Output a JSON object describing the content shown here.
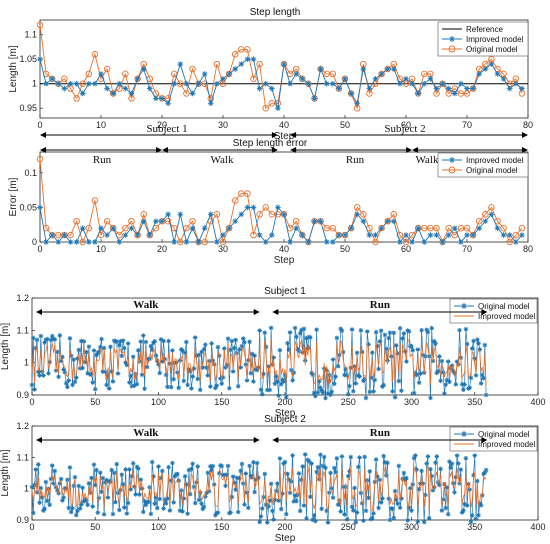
{
  "colors": {
    "reference": "#000000",
    "improved": "#1f77b4",
    "original": "#e8702a",
    "improved_small": "#e8702a",
    "original_small": "#1f77b4"
  },
  "chart_data": [
    {
      "type": "line",
      "title": "Step length",
      "xlabel": "Step",
      "ylabel": "Length [m]",
      "xlim": [
        0,
        80
      ],
      "ylim": [
        0.93,
        1.13
      ],
      "xticks": [
        "0",
        "10",
        "20",
        "30",
        "40",
        "50",
        "60",
        "70",
        "80"
      ],
      "yticks": [
        "0.95",
        "1",
        "1.05",
        "1.1"
      ],
      "legend": [
        "Reference",
        "Improved model",
        "Original model"
      ],
      "legend_position": "top-right",
      "series": [
        {
          "name": "Reference",
          "values": [
            1.0,
            1.0
          ]
        },
        {
          "name": "Improved model",
          "values": [
            1.05,
            1.0,
            1.01,
            1.0,
            0.99,
            1.0,
            1.0,
            0.98,
            1.0,
            1.0,
            1.02,
            0.99,
            0.98,
            1.0,
            0.99,
            0.98,
            1.01,
            1.03,
            0.99,
            0.97,
            0.97,
            0.96,
            1.0,
            1.04,
            1.0,
            0.98,
            1.0,
            1.02,
            0.96,
            1.0,
            1.01,
            1.02,
            1.03,
            1.04,
            1.05,
            1.05,
            0.99,
            1.0,
            0.99,
            0.95,
            1.04,
            1.0,
            1.02,
            1.01,
            1.0,
            0.97,
            1.03,
            1.0,
            1.0,
            0.99,
            1.01,
            0.98,
            0.96,
            1.03,
            0.99,
            1.01,
            1.02,
            1.03,
            1.03,
            1.0,
            1.01,
            1.0,
            0.98,
            1.0,
            1.01,
            0.99,
            1.0,
            0.99,
            0.98,
            1.0,
            0.99,
            0.99,
            1.02,
            1.03,
            1.04,
            1.02,
            1.01,
            0.99,
            1.0,
            0.99
          ]
        },
        {
          "name": "Original model",
          "values": [
            1.12,
            1.02,
            1.01,
            1.0,
            1.01,
            0.99,
            0.97,
            1.0,
            1.02,
            1.06,
            1.01,
            1.03,
            0.98,
            0.99,
            1.02,
            0.97,
            1.01,
            1.04,
            1.01,
            0.98,
            0.97,
            0.97,
            1.02,
            1.0,
            0.98,
            1.03,
            1.0,
            1.0,
            0.97,
            1.04,
            1.0,
            1.02,
            1.06,
            1.07,
            1.07,
            1.01,
            1.04,
            0.95,
            0.96,
            0.96,
            1.04,
            1.02,
            1.03,
            1.01,
            1.0,
            0.97,
            1.03,
            1.02,
            1.02,
            0.99,
            1.01,
            0.98,
            0.95,
            1.04,
            0.98,
            1.0,
            1.02,
            1.03,
            1.04,
            1.01,
            1.0,
            1.01,
            0.98,
            1.02,
            1.02,
            0.98,
            1.0,
            0.98,
            0.99,
            0.98,
            0.98,
            0.99,
            1.03,
            1.04,
            1.05,
            1.03,
            1.02,
            1.0,
            1.01,
            0.98
          ]
        }
      ],
      "annotations": [
        {
          "text": "Step length error",
          "position": "above-lower-axis"
        },
        {
          "text": "Subject 1",
          "span": [
            0,
            39
          ]
        },
        {
          "text": "Subject 2",
          "span": [
            41,
            80
          ]
        },
        {
          "text": "Run",
          "span": [
            0,
            20
          ]
        },
        {
          "text": "Walk",
          "span": [
            20,
            39
          ]
        },
        {
          "text": "Run",
          "span": [
            41,
            61
          ]
        },
        {
          "text": "Walk",
          "span": [
            61,
            80
          ]
        }
      ]
    },
    {
      "type": "line",
      "title": "",
      "xlabel": "Step",
      "ylabel": "Error [m]",
      "xlim": [
        0,
        80
      ],
      "ylim": [
        0,
        0.13
      ],
      "xticks": [
        "0",
        "10",
        "20",
        "30",
        "40",
        "50",
        "60",
        "70",
        "80"
      ],
      "yticks": [
        "0",
        "0.05",
        "0.1"
      ],
      "legend": [
        "Improved model",
        "Original model"
      ],
      "legend_position": "top-right",
      "series": [
        {
          "name": "Improved model",
          "values": [
            0.05,
            0.0,
            0.01,
            0.0,
            0.01,
            0.0,
            0.0,
            0.02,
            0.0,
            0.0,
            0.02,
            0.01,
            0.02,
            0.0,
            0.01,
            0.02,
            0.01,
            0.03,
            0.01,
            0.03,
            0.03,
            0.04,
            0.0,
            0.04,
            0.0,
            0.02,
            0.0,
            0.02,
            0.04,
            0.0,
            0.01,
            0.02,
            0.03,
            0.04,
            0.05,
            0.05,
            0.01,
            0.0,
            0.01,
            0.05,
            0.04,
            0.0,
            0.02,
            0.01,
            0.0,
            0.03,
            0.03,
            0.0,
            0.0,
            0.01,
            0.01,
            0.02,
            0.04,
            0.03,
            0.01,
            0.01,
            0.02,
            0.03,
            0.03,
            0.0,
            0.01,
            0.0,
            0.02,
            0.0,
            0.01,
            0.01,
            0.0,
            0.01,
            0.02,
            0.0,
            0.01,
            0.01,
            0.02,
            0.03,
            0.04,
            0.02,
            0.01,
            0.01,
            0.0,
            0.01
          ]
        },
        {
          "name": "Original model",
          "values": [
            0.12,
            0.02,
            0.01,
            0.01,
            0.01,
            0.01,
            0.03,
            0.0,
            0.02,
            0.06,
            0.01,
            0.03,
            0.02,
            0.01,
            0.02,
            0.03,
            0.01,
            0.04,
            0.01,
            0.02,
            0.03,
            0.03,
            0.02,
            0.0,
            0.02,
            0.03,
            0.0,
            0.0,
            0.03,
            0.04,
            0.0,
            0.02,
            0.06,
            0.07,
            0.07,
            0.01,
            0.04,
            0.05,
            0.04,
            0.04,
            0.04,
            0.02,
            0.03,
            0.01,
            0.0,
            0.03,
            0.03,
            0.02,
            0.02,
            0.01,
            0.01,
            0.02,
            0.05,
            0.04,
            0.02,
            0.0,
            0.02,
            0.03,
            0.04,
            0.01,
            0.0,
            0.01,
            0.02,
            0.02,
            0.02,
            0.02,
            0.0,
            0.02,
            0.01,
            0.02,
            0.02,
            0.01,
            0.03,
            0.04,
            0.05,
            0.03,
            0.02,
            0.0,
            0.01,
            0.02
          ]
        }
      ]
    },
    {
      "type": "line",
      "title": "Subject 1",
      "xlabel": "Step",
      "ylabel": "Length [m]",
      "xlim": [
        0,
        400
      ],
      "ylim": [
        0.9,
        1.2
      ],
      "xticks": [
        "0",
        "50",
        "100",
        "150",
        "200",
        "250",
        "300",
        "350",
        "400"
      ],
      "yticks": [
        "0.9",
        "1",
        "1.1",
        "1.2"
      ],
      "legend": [
        "Original model",
        "Improved model"
      ],
      "legend_position": "top-right",
      "n_points": 360,
      "annotations": [
        {
          "text": "Walk",
          "span": [
            0,
            180
          ]
        },
        {
          "text": "Run",
          "span": [
            190,
            360
          ]
        }
      ]
    },
    {
      "type": "line",
      "title": "Subject 2",
      "xlabel": "Step",
      "ylabel": "Length [m]",
      "xlim": [
        0,
        400
      ],
      "ylim": [
        0.9,
        1.2
      ],
      "xticks": [
        "0",
        "50",
        "100",
        "150",
        "200",
        "250",
        "300",
        "350",
        "400"
      ],
      "yticks": [
        "0.9",
        "1",
        "1.1",
        "1.2"
      ],
      "legend": [
        "Original model",
        "Improved model"
      ],
      "legend_position": "top-right",
      "n_points": 360,
      "annotations": [
        {
          "text": "Walk",
          "span": [
            0,
            180
          ]
        },
        {
          "text": "Run",
          "span": [
            190,
            360
          ]
        }
      ]
    }
  ]
}
